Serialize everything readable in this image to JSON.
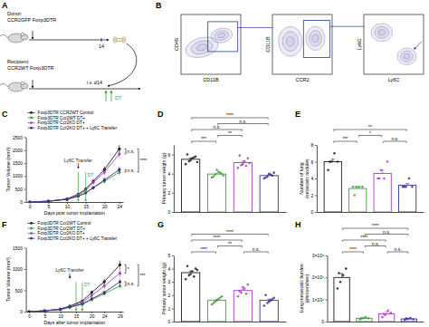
{
  "diagram": {
    "panel": "A",
    "donor_label": "Donor:",
    "donor_genotype": "CCR2GFP Foxp3DTR",
    "day_label": "14",
    "recipient_label": "Recipient:",
    "recipient_genotype": "CCR2WT Foxp3DTR",
    "injection_label": "i.v. d14",
    "treatment_label": "DT"
  },
  "flow_plots": {
    "panel": "B",
    "plots": [
      {
        "x_label": "CD11B",
        "y_label": "CD45"
      },
      {
        "x_label": "CCR2",
        "y_label": "CD11B"
      },
      {
        "x_label": "Ly6C",
        "y_label": "Ly6G"
      }
    ]
  },
  "chart_data": [
    {
      "panel": "C",
      "type": "line",
      "x_label": "Days post tumor implantation",
      "y_label": "Tumor Volume (mm³)",
      "x": [
        0,
        5,
        10,
        13,
        15,
        17,
        20,
        24
      ],
      "xlim": [
        -1,
        25
      ],
      "xticks": [
        0,
        5,
        10,
        15,
        20,
        24
      ],
      "ylim": [
        0,
        2500
      ],
      "yticks": [
        0,
        500,
        1000,
        1500,
        2000,
        2500
      ],
      "legend": "top",
      "series": [
        {
          "name": "Foxp3DTR CCR2WT Control",
          "color": "#1a1a1a",
          "marker": "circle",
          "values": [
            0,
            30,
            120,
            300,
            500,
            800,
            1250,
            2050
          ],
          "errors": [
            0,
            10,
            20,
            40,
            60,
            90,
            130,
            160
          ]
        },
        {
          "name": "Foxp3DTR Ccr2WT DT+",
          "color": "#3f9e3a",
          "marker": "circle",
          "values": [
            0,
            30,
            100,
            220,
            350,
            550,
            800,
            1150
          ],
          "errors": [
            0,
            8,
            15,
            30,
            40,
            60,
            90,
            120
          ]
        },
        {
          "name": "Foxp3DTR Ccr2KO DT+",
          "color": "#a542c0",
          "marker": "circle",
          "values": [
            0,
            30,
            110,
            270,
            450,
            750,
            1150,
            1850
          ],
          "errors": [
            0,
            9,
            18,
            35,
            50,
            80,
            110,
            150
          ]
        },
        {
          "name": "Foxp3DTR Ccr2KO DT+ + Ly6C Transfer",
          "color": "#3b2f8f",
          "marker": "circle",
          "values": [
            0,
            30,
            100,
            230,
            350,
            550,
            850,
            1250
          ],
          "errors": [
            0,
            8,
            15,
            30,
            40,
            60,
            90,
            120
          ]
        }
      ],
      "end_labels": [
        {
          "pair": [
            0,
            2
          ],
          "label": "n.s."
        },
        {
          "pair": [
            1,
            3
          ],
          "label": "n.s."
        },
        {
          "pair": [
            0,
            1
          ],
          "label": "****"
        }
      ],
      "annotations": [
        {
          "label": "Ly6C Transfer",
          "x": [
            13
          ],
          "color": "#1a1a1a"
        },
        {
          "label": "DT",
          "x": [
            13,
            15
          ],
          "color": "#3f9e3a"
        }
      ]
    },
    {
      "panel": "D",
      "type": "bar",
      "y_label": "Primary tumor weight (g)",
      "categories": [
        null,
        null,
        null,
        null
      ],
      "tick_labels": "y",
      "values": [
        5.5,
        3.96,
        5.15,
        3.8
      ],
      "errors": [
        0.15,
        0.1,
        0.15,
        0.1
      ],
      "points": [
        [
          5.0,
          5.3,
          5.6,
          5.8,
          6.0,
          5.4,
          5.7,
          5.2
        ],
        [
          3.6,
          3.9,
          4.2,
          4.0,
          3.7,
          4.4,
          4.1,
          3.8
        ],
        [
          4.6,
          4.9,
          5.3,
          5.6,
          5.9,
          5.0,
          4.8,
          5.1
        ],
        [
          3.5,
          3.7,
          3.9,
          4.1,
          3.6,
          4.0,
          3.8
        ]
      ],
      "colors": [
        "#1a1a1a",
        "#3f9e3a",
        "#a542c0",
        "#3b2f8f"
      ],
      "ylim": [
        0,
        7
      ],
      "yticks": [
        0,
        2,
        4,
        6
      ],
      "comparisons": [
        {
          "pair": [
            0,
            3
          ],
          "label": "****"
        },
        {
          "pair": [
            0,
            2
          ],
          "label": "n.s."
        },
        {
          "pair": [
            0,
            1
          ],
          "label": "***"
        },
        {
          "pair": [
            1,
            2
          ],
          "label": "**"
        },
        {
          "pair": [
            1,
            3
          ],
          "label": "n.s."
        }
      ]
    },
    {
      "panel": "E",
      "type": "bar",
      "y_label": [
        "Number of lung",
        "metastatic nodules"
      ],
      "categories": [
        null,
        null,
        null,
        null
      ],
      "tick_labels": "y",
      "values": [
        6,
        2.8,
        4.6,
        3.2
      ],
      "errors": [
        0.3,
        0.2,
        0.4,
        0.2
      ],
      "points": [
        [
          5,
          6,
          7,
          6,
          6
        ],
        [
          3,
          3,
          3,
          3,
          2
        ],
        [
          4,
          5,
          4,
          6,
          4
        ],
        [
          3,
          3,
          4,
          3,
          3
        ]
      ],
      "colors": [
        "#1a1a1a",
        "#3f9e3a",
        "#a542c0",
        "#3b2f8f"
      ],
      "ylim": [
        0,
        8
      ],
      "yticks": [
        0,
        2,
        4,
        6,
        8
      ],
      "comparisons": [
        {
          "pair": [
            0,
            3
          ],
          "label": "**"
        },
        {
          "pair": [
            0,
            1
          ],
          "label": "***"
        },
        {
          "pair": [
            1,
            2
          ],
          "label": "*"
        },
        {
          "pair": [
            2,
            3
          ],
          "label": "n.s."
        }
      ]
    },
    {
      "panel": "F",
      "type": "line",
      "x_label": "Days after tumor implantation",
      "y_label": "Tumor Volume (mm³)",
      "x": [
        0,
        5,
        10,
        13,
        17,
        20,
        24,
        29
      ],
      "xlim": [
        -1,
        30
      ],
      "xticks": [
        0,
        5,
        10,
        15,
        20,
        24,
        29
      ],
      "ylim": [
        0,
        1500
      ],
      "yticks": [
        0,
        500,
        1000,
        1500
      ],
      "legend": "top",
      "series": [
        {
          "name": "Foxp3DTR Ccr2WT Control",
          "color": "#1a1a1a",
          "marker": "circle",
          "values": [
            0,
            20,
            60,
            130,
            250,
            450,
            700,
            1100
          ],
          "errors": [
            0,
            5,
            10,
            20,
            30,
            50,
            70,
            100
          ]
        },
        {
          "name": "Foxp3DTR Ccr2WT DT+",
          "color": "#3f9e3a",
          "marker": "circle",
          "values": [
            0,
            20,
            50,
            100,
            170,
            280,
            420,
            600
          ],
          "errors": [
            0,
            5,
            8,
            15,
            20,
            30,
            40,
            60
          ]
        },
        {
          "name": "Foxp3DTR Ccr2KO DT+",
          "color": "#a542c0",
          "marker": "circle",
          "values": [
            0,
            20,
            55,
            120,
            220,
            380,
            600,
            900
          ],
          "errors": [
            0,
            5,
            9,
            18,
            25,
            40,
            60,
            90
          ]
        },
        {
          "name": "Foxp3DTR Ccr2KO DT+ + Ly6C Transfer",
          "color": "#3b2f8f",
          "marker": "circle",
          "values": [
            0,
            20,
            50,
            110,
            180,
            300,
            450,
            700
          ],
          "errors": [
            0,
            5,
            8,
            15,
            20,
            30,
            45,
            70
          ]
        }
      ],
      "end_labels": [
        {
          "pair": [
            0,
            2
          ],
          "label": "*"
        },
        {
          "pair": [
            1,
            3
          ],
          "label": "n.s."
        },
        {
          "pair": [
            0,
            1
          ],
          "label": "***"
        }
      ],
      "annotations": [
        {
          "label": "Ly6C Transfer",
          "x": [
            13
          ],
          "color": "#1a1a1a"
        },
        {
          "label": "DT",
          "x": [
            15,
            17
          ],
          "color": "#3f9e3a"
        }
      ]
    },
    {
      "panel": "G",
      "type": "bar",
      "y_label": "Primary tumor weight (g)",
      "categories": [
        null,
        null,
        null,
        null
      ],
      "tick_labels": "y",
      "values": [
        3.7,
        1.6,
        2.35,
        1.6
      ],
      "errors": [
        0.12,
        0.08,
        0.1,
        0.1
      ],
      "points": [
        [
          3.2,
          3.5,
          3.8,
          4.0,
          4.2,
          3.6,
          3.4,
          3.9
        ],
        [
          1.3,
          1.5,
          1.7,
          1.9,
          1.4,
          1.6,
          1.8
        ],
        [
          1.9,
          2.2,
          2.5,
          2.8,
          2.3,
          2.6,
          2.1
        ],
        [
          1.2,
          1.4,
          1.6,
          1.8,
          2.0,
          1.5,
          1.7
        ]
      ],
      "colors": [
        "#1a1a1a",
        "#3f9e3a",
        "#a542c0",
        "#3b2f8f"
      ],
      "ylim": [
        0,
        5
      ],
      "yticks": [
        0,
        1,
        2,
        3,
        4,
        5
      ],
      "comparisons": [
        {
          "pair": [
            0,
            1
          ],
          "label": "****"
        },
        {
          "pair": [
            0,
            2
          ],
          "label": "****"
        },
        {
          "pair": [
            0,
            3
          ],
          "label": "****"
        },
        {
          "pair": [
            1,
            2
          ],
          "label": "**"
        },
        {
          "pair": [
            2,
            3
          ],
          "label": "n.s."
        }
      ]
    },
    {
      "panel": "H",
      "type": "bar",
      "y_label": [
        "Lung metastatic burden",
        "(photons/sec)"
      ],
      "categories": [
        null,
        null,
        null,
        null
      ],
      "tick_labels": "y",
      "values": [
        2000000,
        150000,
        350000,
        120000
      ],
      "errors": [
        180000,
        30000,
        100000,
        30000
      ],
      "points": [
        [
          1500000,
          1800000,
          2100000,
          2400000,
          2200000
        ],
        [
          100000,
          150000,
          200000,
          150000,
          150000
        ],
        [
          200000,
          300000,
          500000,
          400000,
          350000
        ],
        [
          80000,
          120000,
          160000,
          100000,
          140000
        ]
      ],
      "colors": [
        "#1a1a1a",
        "#3f9e3a",
        "#a542c0",
        "#3b2f8f"
      ],
      "ylim": [
        0,
        3000000
      ],
      "yticks": [
        0,
        {
          "value": 1000000,
          "label": "1×10⁶"
        },
        {
          "value": 2000000,
          "label": "2×10⁶"
        },
        {
          "value": 3000000,
          "label": "3×10⁶"
        }
      ],
      "comparisons": [
        {
          "pair": [
            0,
            1
          ],
          "label": "****"
        },
        {
          "pair": [
            0,
            2
          ],
          "label": "****"
        },
        {
          "pair": [
            0,
            3
          ],
          "label": "****"
        },
        {
          "pair": [
            1,
            2
          ],
          "label": "n.s."
        },
        {
          "pair": [
            2,
            3
          ],
          "label": "n.s."
        },
        {
          "pair": [
            1,
            3
          ],
          "label": "n.s."
        }
      ]
    }
  ]
}
